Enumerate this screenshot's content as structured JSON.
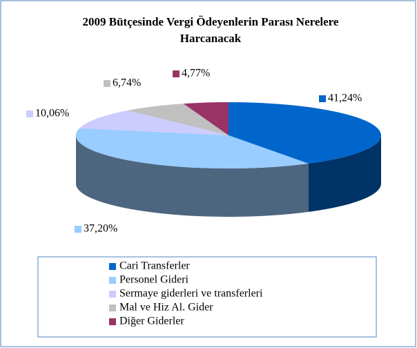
{
  "chart_data": {
    "type": "pie",
    "title": "2009 Bütçesinde Vergi Ödeyenlerin Parası Nerelere Harcanacak",
    "categories": [
      "Cari Transferler",
      "Personel Gideri",
      "Sermaye giderleri ve transferleri",
      "Mal ve Hiz Al. Gider",
      "Diğer Giderler"
    ],
    "values": [
      41.24,
      37.2,
      10.06,
      6.74,
      4.77
    ],
    "value_labels": [
      "41,24%",
      "37,20%",
      "10,06%",
      "6,74%",
      "4,77%"
    ],
    "colors": [
      "#0066cc",
      "#99ccff",
      "#ccccff",
      "#c0c0c0",
      "#993366"
    ],
    "legend": "bottom"
  }
}
